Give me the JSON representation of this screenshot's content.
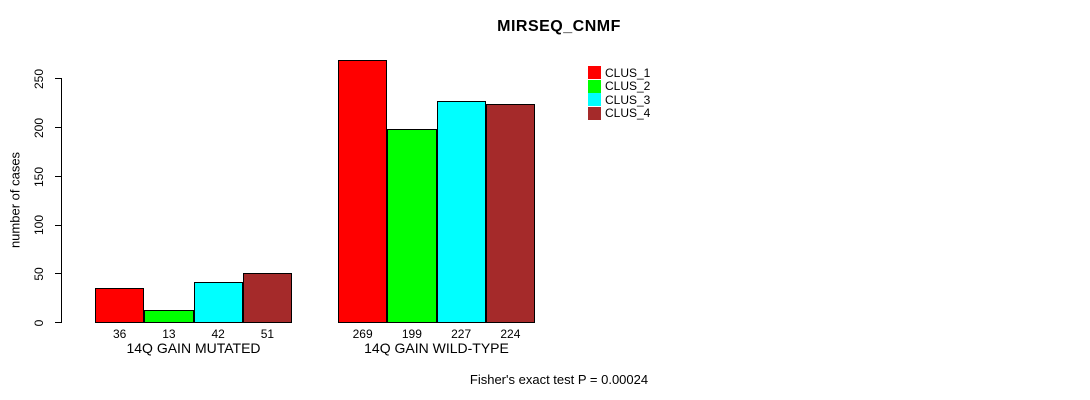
{
  "chart_data": {
    "type": "bar",
    "title": "MIRSEQ_CNMF",
    "xlabel": "",
    "ylabel": "number of cases",
    "ylim": [
      0,
      250
    ],
    "yticks": [
      0,
      50,
      100,
      150,
      200,
      250
    ],
    "grid": false,
    "legend_position": "topright",
    "bar_value_labels_shown": true,
    "categories": [
      "14Q GAIN MUTATED",
      "14Q GAIN WILD-TYPE"
    ],
    "series": [
      {
        "name": "CLUS_1",
        "color": "#FF0000",
        "values": [
          36,
          269
        ]
      },
      {
        "name": "CLUS_2",
        "color": "#00FF00",
        "values": [
          13,
          199
        ]
      },
      {
        "name": "CLUS_3",
        "color": "#00FFFF",
        "values": [
          42,
          227
        ]
      },
      {
        "name": "CLUS_4",
        "color": "#A52A2A",
        "values": [
          51,
          224
        ]
      }
    ]
  },
  "footer": {
    "caption": "Fisher's exact test P = 0.00024"
  },
  "colors": {
    "axis": "#000000",
    "text": "#000000",
    "background": "#FFFFFF"
  }
}
